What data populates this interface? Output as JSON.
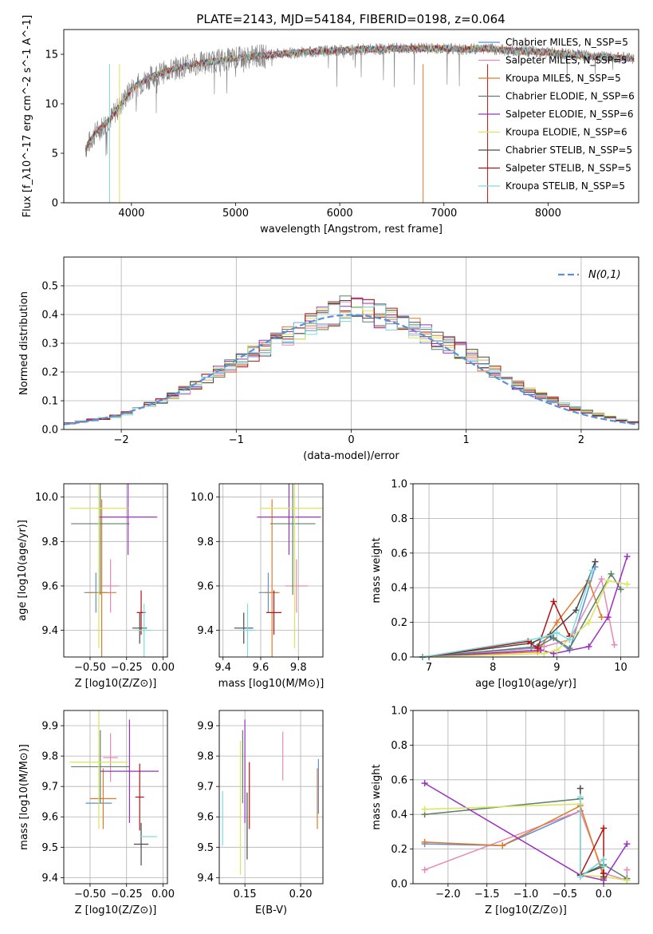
{
  "figure": {
    "title": "PLATE=2143, MJD=54184, FIBERID=0198, z=0.064"
  },
  "chart_data": [
    {
      "id": "spectrum",
      "type": "line",
      "xlabel": "wavelength [Angstrom, rest frame]",
      "ylabel": "Flux [f_λ10^-17 erg cm^-2 s^-1 A^-1]",
      "xlim": [
        3350,
        8870
      ],
      "ylim": [
        0,
        17.5
      ],
      "xticks": [
        4000,
        5000,
        6000,
        7000,
        8000
      ],
      "yticks": [
        0,
        5,
        10,
        15
      ],
      "grid": false,
      "legend_position": "right",
      "data_color": "#808080",
      "data_profile": {
        "x": [
          3560,
          3650,
          3800,
          3900,
          4000,
          4200,
          4400,
          4600,
          4800,
          5000,
          5200,
          5400,
          5600,
          5800,
          6000,
          6200,
          6400,
          6600,
          6800,
          7000,
          7200,
          7400,
          7600,
          7800,
          8000,
          8200,
          8400,
          8600,
          8800
        ],
        "y": [
          5.5,
          7.0,
          8.5,
          10.0,
          11.5,
          12.8,
          13.5,
          14.0,
          14.3,
          14.6,
          14.8,
          15.0,
          15.2,
          15.3,
          15.4,
          15.5,
          15.5,
          15.6,
          15.6,
          15.6,
          15.5,
          15.6,
          15.4,
          15.3,
          15.2,
          15.0,
          14.8,
          14.7,
          14.6
        ]
      },
      "series": [
        {
          "name": "Chabrier MILES, N_SSP=5",
          "color": "#5b8fd6"
        },
        {
          "name": "Salpeter MILES, N_SSP=5",
          "color": "#e48ab5"
        },
        {
          "name": "Kroupa MILES, N_SSP=5",
          "color": "#e07a2a"
        },
        {
          "name": "Chabrier ELODIE, N_SSP=6",
          "color": "#5c806a"
        },
        {
          "name": "Salpeter ELODIE, N_SSP=6",
          "color": "#9b30c0"
        },
        {
          "name": "Kroupa ELODIE, N_SSP=6",
          "color": "#d9e55a"
        },
        {
          "name": "Chabrier STELIB, N_SSP=5",
          "color": "#4a4a4a"
        },
        {
          "name": "Salpeter STELIB, N_SSP=5",
          "color": "#b01414"
        },
        {
          "name": "Kroupa STELIB, N_SSP=5",
          "color": "#7fdcdc"
        }
      ]
    },
    {
      "id": "residuals",
      "type": "histogram",
      "xlabel": "(data-model)/error",
      "ylabel": "Normed distribution",
      "xlim": [
        -2.5,
        2.5
      ],
      "ylim": [
        0,
        0.6
      ],
      "xticks": [
        -2,
        -1,
        0,
        1,
        2
      ],
      "yticks": [
        0.0,
        0.1,
        0.2,
        0.3,
        0.4,
        0.5
      ],
      "grid": true,
      "legend_position": "top-right",
      "legend_label": "N(0,1)",
      "bin_width": 0.1,
      "envelope": {
        "x": [
          -2.5,
          -2.0,
          -1.5,
          -1.0,
          -0.5,
          0.0,
          0.5,
          1.0,
          1.5,
          2.0,
          2.5
        ],
        "y": [
          0.018,
          0.048,
          0.125,
          0.23,
          0.34,
          0.43,
          0.36,
          0.265,
          0.14,
          0.065,
          0.02
        ]
      },
      "gaussian": {
        "mu": 0,
        "sigma": 1,
        "color": "#5b8fd6"
      }
    },
    {
      "id": "Z-age",
      "type": "errorbar",
      "xlabel": "Z [log10(Z/Z⊙)]",
      "ylabel": "age [log10(age/yr)]",
      "xlim": [
        -0.68,
        0.03
      ],
      "ylim": [
        9.28,
        10.06
      ],
      "xticks": [
        -0.5,
        -0.25,
        0.0
      ],
      "yticks": [
        9.4,
        9.6,
        9.8,
        10.0
      ],
      "grid": true,
      "points": [
        {
          "series": 0,
          "x": -0.46,
          "xerr": 0.08,
          "y": 9.57,
          "yerr": 0.09
        },
        {
          "series": 1,
          "x": -0.36,
          "xerr": 0.06,
          "y": 9.6,
          "yerr": 0.12
        },
        {
          "series": 2,
          "x": -0.42,
          "xerr": 0.1,
          "y": 9.57,
          "yerr": 0.42
        },
        {
          "series": 3,
          "x": -0.43,
          "xerr": 0.2,
          "y": 9.88,
          "yerr": 0.32
        },
        {
          "series": 4,
          "x": -0.24,
          "xerr": 0.2,
          "y": 9.91,
          "yerr": 0.17
        },
        {
          "series": 5,
          "x": -0.44,
          "xerr": 0.2,
          "y": 9.95,
          "yerr": 0.63
        },
        {
          "series": 6,
          "x": -0.16,
          "xerr": 0.05,
          "y": 9.41,
          "yerr": 0.07
        },
        {
          "series": 7,
          "x": -0.15,
          "xerr": 0.03,
          "y": 9.48,
          "yerr": 0.1
        },
        {
          "series": 8,
          "x": -0.13,
          "xerr": 0.05,
          "y": 9.4,
          "yerr": 0.12
        }
      ]
    },
    {
      "id": "mass-age",
      "type": "errorbar",
      "xlabel": "mass [log10(M/M⊙)]",
      "ylabel": "",
      "xlim": [
        9.38,
        9.93
      ],
      "ylim": [
        9.28,
        10.06
      ],
      "xticks": [
        9.4,
        9.6,
        9.8
      ],
      "yticks": [
        9.4,
        9.6,
        9.8,
        10.0
      ],
      "grid": true,
      "points": [
        {
          "series": 0,
          "x": 9.64,
          "xerr": 0.05,
          "y": 9.57,
          "yerr": 0.09
        },
        {
          "series": 1,
          "x": 9.79,
          "xerr": 0.06,
          "y": 9.6,
          "yerr": 0.12
        },
        {
          "series": 2,
          "x": 9.66,
          "xerr": 0.04,
          "y": 9.57,
          "yerr": 0.42
        },
        {
          "series": 3,
          "x": 9.77,
          "xerr": 0.12,
          "y": 9.88,
          "yerr": 0.32
        },
        {
          "series": 4,
          "x": 9.75,
          "xerr": 0.17,
          "y": 9.91,
          "yerr": 0.17
        },
        {
          "series": 5,
          "x": 9.78,
          "xerr": 0.18,
          "y": 9.95,
          "yerr": 0.63
        },
        {
          "series": 6,
          "x": 9.51,
          "xerr": 0.05,
          "y": 9.41,
          "yerr": 0.07
        },
        {
          "series": 7,
          "x": 9.67,
          "xerr": 0.04,
          "y": 9.48,
          "yerr": 0.1
        },
        {
          "series": 8,
          "x": 9.53,
          "xerr": 0.04,
          "y": 9.4,
          "yerr": 0.12
        }
      ]
    },
    {
      "id": "age-weight",
      "type": "line",
      "xlabel": "age [log10(age/yr)]",
      "ylabel": "mass weight",
      "xlim": [
        6.75,
        10.28
      ],
      "ylim": [
        0,
        1
      ],
      "xticks": [
        7,
        8,
        9,
        10
      ],
      "yticks": [
        0.0,
        0.2,
        0.4,
        0.6,
        0.8,
        1.0
      ],
      "grid": true,
      "series": [
        {
          "series": 0,
          "x": [
            6.9,
            8.6,
            8.9,
            9.2,
            9.6
          ],
          "y": [
            0.0,
            0.05,
            0.12,
            0.04,
            0.52
          ]
        },
        {
          "series": 1,
          "x": [
            6.9,
            8.8,
            9.2,
            9.7,
            9.9
          ],
          "y": [
            0.0,
            0.06,
            0.1,
            0.45,
            0.07
          ]
        },
        {
          "series": 2,
          "x": [
            6.9,
            8.7,
            9.0,
            9.5,
            9.7
          ],
          "y": [
            0.0,
            0.03,
            0.2,
            0.44,
            0.23
          ]
        },
        {
          "series": 3,
          "x": [
            6.9,
            8.7,
            8.95,
            9.2,
            9.85,
            10.0
          ],
          "y": [
            0.0,
            0.06,
            0.11,
            0.05,
            0.48,
            0.39
          ]
        },
        {
          "series": 4,
          "x": [
            6.9,
            8.75,
            8.95,
            9.5,
            9.8,
            10.1
          ],
          "y": [
            0.0,
            0.04,
            0.02,
            0.06,
            0.23,
            0.58
          ]
        },
        {
          "series": 5,
          "x": [
            6.9,
            8.8,
            9.0,
            9.5,
            9.8,
            10.1
          ],
          "y": [
            0.0,
            0.02,
            0.04,
            0.2,
            0.44,
            0.42
          ]
        },
        {
          "series": 6,
          "x": [
            6.9,
            8.6,
            8.9,
            9.3,
            9.6
          ],
          "y": [
            0.0,
            0.08,
            0.13,
            0.27,
            0.55
          ]
        },
        {
          "series": 7,
          "x": [
            6.9,
            8.55,
            8.7,
            8.95,
            9.2
          ],
          "y": [
            0.0,
            0.09,
            0.05,
            0.32,
            0.12
          ]
        },
        {
          "series": 8,
          "x": [
            6.9,
            8.75,
            9.0,
            9.2,
            9.55
          ],
          "y": [
            0.0,
            0.11,
            0.14,
            0.1,
            0.5
          ]
        }
      ]
    },
    {
      "id": "Z-mass",
      "type": "errorbar",
      "xlabel": "Z [log10(Z/Z⊙)]",
      "ylabel": "mass [log10(M/M⊙)]",
      "xlim": [
        -0.68,
        0.03
      ],
      "ylim": [
        9.38,
        9.95
      ],
      "xticks": [
        -0.5,
        -0.25,
        0.0
      ],
      "yticks": [
        9.4,
        9.5,
        9.6,
        9.7,
        9.8,
        9.9
      ],
      "grid": true,
      "points": [
        {
          "series": 0,
          "x": -0.44,
          "xerr": 0.09,
          "y": 9.645,
          "yerr": 0.0
        },
        {
          "series": 1,
          "x": -0.36,
          "xerr": 0.05,
          "y": 9.795,
          "yerr": 0.08
        },
        {
          "series": 2,
          "x": -0.41,
          "xerr": 0.09,
          "y": 9.66,
          "yerr": 0.1
        },
        {
          "series": 3,
          "x": -0.43,
          "xerr": 0.2,
          "y": 9.765,
          "yerr": 0.12
        },
        {
          "series": 4,
          "x": -0.23,
          "xerr": 0.2,
          "y": 9.75,
          "yerr": 0.17
        },
        {
          "series": 5,
          "x": -0.44,
          "xerr": 0.2,
          "y": 9.78,
          "yerr": 0.22
        },
        {
          "series": 6,
          "x": -0.15,
          "xerr": 0.05,
          "y": 9.51,
          "yerr": 0.07
        },
        {
          "series": 7,
          "x": -0.16,
          "xerr": 0.03,
          "y": 9.665,
          "yerr": 0.11
        },
        {
          "series": 8,
          "x": -0.1,
          "xerr": 0.06,
          "y": 9.535,
          "yerr": 0.0
        }
      ]
    },
    {
      "id": "ebv-mass",
      "type": "errorbar",
      "xlabel": "E(B-V)",
      "ylabel": "",
      "xlim": [
        0.127,
        0.22
      ],
      "ylim": [
        9.38,
        9.95
      ],
      "xticks": [
        0.15,
        0.2
      ],
      "yticks": [
        9.4,
        9.5,
        9.6,
        9.7,
        9.8,
        9.9
      ],
      "grid": true,
      "points": [
        {
          "series": 0,
          "x": 0.216,
          "xerr": 0,
          "y": 9.7,
          "yerr": 0.09
        },
        {
          "series": 1,
          "x": 0.184,
          "xerr": 0,
          "y": 9.8,
          "yerr": 0.08
        },
        {
          "series": 2,
          "x": 0.215,
          "xerr": 0,
          "y": 9.66,
          "yerr": 0.1
        },
        {
          "series": 3,
          "x": 0.148,
          "xerr": 0,
          "y": 9.765,
          "yerr": 0.12
        },
        {
          "series": 4,
          "x": 0.15,
          "xerr": 0,
          "y": 9.75,
          "yerr": 0.17
        },
        {
          "series": 5,
          "x": 0.146,
          "xerr": 0,
          "y": 9.63,
          "yerr": 0.22
        },
        {
          "series": 6,
          "x": 0.152,
          "xerr": 0,
          "y": 9.57,
          "yerr": 0.11
        },
        {
          "series": 7,
          "x": 0.154,
          "xerr": 0,
          "y": 9.67,
          "yerr": 0.11
        },
        {
          "series": 8,
          "x": 0.13,
          "xerr": 0,
          "y": 9.595,
          "yerr": 0.09
        }
      ]
    },
    {
      "id": "Z-weight",
      "type": "line",
      "xlabel": "Z [log10(Z/Z⊙)]",
      "ylabel": "mass weight",
      "xlim": [
        -2.45,
        0.45
      ],
      "ylim": [
        0,
        1
      ],
      "xticks": [
        -2.0,
        -1.5,
        -1.0,
        -0.5,
        0.0
      ],
      "yticks": [
        0.0,
        0.2,
        0.4,
        0.6,
        0.8,
        1.0
      ],
      "grid": true,
      "series": [
        {
          "series": 0,
          "x": [
            -2.3,
            -1.3,
            -0.3,
            -0.3,
            0.0
          ],
          "y": [
            0.23,
            0.22,
            0.42,
            0.04,
            0.14
          ]
        },
        {
          "series": 1,
          "x": [
            -2.3,
            -0.3,
            0.0,
            0.3,
            0.3
          ],
          "y": [
            0.08,
            0.42,
            0.06,
            0.02,
            0.08
          ]
        },
        {
          "series": 2,
          "x": [
            -2.3,
            -1.3,
            -0.3,
            0.0,
            0.0
          ],
          "y": [
            0.24,
            0.22,
            0.45,
            0.04,
            0.03
          ]
        },
        {
          "series": 3,
          "x": [
            -2.3,
            -0.3,
            -0.3,
            0.0,
            0.3
          ],
          "y": [
            0.4,
            0.49,
            0.05,
            0.11,
            0.03
          ]
        },
        {
          "series": 4,
          "x": [
            -2.3,
            -0.3,
            0.0,
            0.3
          ],
          "y": [
            0.58,
            0.05,
            0.02,
            0.23
          ]
        },
        {
          "series": 5,
          "x": [
            -2.3,
            -0.3,
            -0.3,
            0.0,
            0.3
          ],
          "y": [
            0.43,
            0.46,
            0.05,
            0.04,
            0.02
          ]
        },
        {
          "series": 6,
          "x": [
            -0.3,
            -0.3,
            0.0,
            0.0
          ],
          "y": [
            0.55,
            0.05,
            0.1,
            0.04
          ]
        },
        {
          "series": 7,
          "x": [
            -0.3,
            0.0,
            0.0
          ],
          "y": [
            0.05,
            0.32,
            0.06
          ]
        },
        {
          "series": 8,
          "x": [
            -0.3,
            -0.3,
            0.0,
            0.0
          ],
          "y": [
            0.5,
            0.04,
            0.14,
            0.1
          ]
        }
      ]
    }
  ]
}
